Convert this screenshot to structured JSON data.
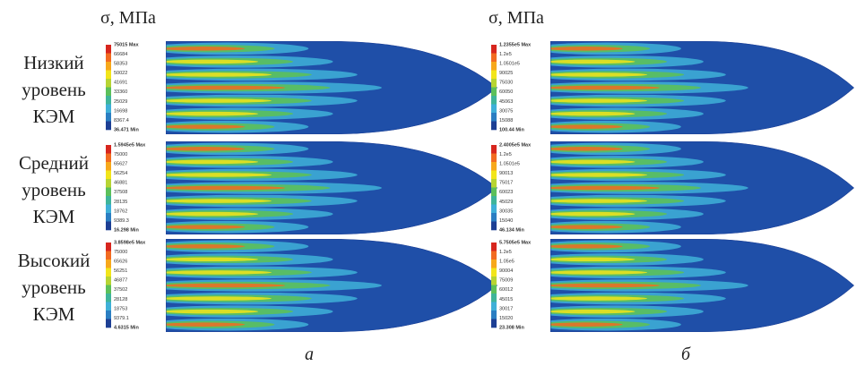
{
  "headers": [
    "σ, МПа",
    "σ, МПа"
  ],
  "row_labels": [
    [
      "Низкий",
      "уровень",
      "КЭМ"
    ],
    [
      "Средний",
      "уровень",
      "КЭМ"
    ],
    [
      "Высокий",
      "уровень",
      "КЭМ"
    ]
  ],
  "panels": [
    {
      "legend": [
        "75015 Max",
        "66684",
        "58353",
        "50022",
        "41691",
        "33360",
        "25029",
        "16698",
        "8367.4",
        "36.471 Min"
      ]
    },
    {
      "legend": [
        "1.2355e5 Max",
        "1.2e5",
        "1.0501e5",
        "90025",
        "75030",
        "60050",
        "45063",
        "30075",
        "15088",
        "100.44 Min"
      ]
    },
    {
      "legend": [
        "1.5945e5 Max",
        "75000",
        "65627",
        "56254",
        "46881",
        "37508",
        "28135",
        "18762",
        "9389.3",
        "16.298 Min"
      ]
    },
    {
      "legend": [
        "2.4005e5 Max",
        "1.2e5",
        "1.0501e5",
        "90013",
        "75017",
        "60023",
        "45029",
        "30035",
        "15040",
        "46.134 Min"
      ]
    },
    {
      "legend": [
        "3.8598e5 Max",
        "75000",
        "65626",
        "56251",
        "46877",
        "37502",
        "28128",
        "18753",
        "9379.1",
        "4.6315 Min"
      ]
    },
    {
      "legend": [
        "5.7505e5 Max",
        "1.2e5",
        "1.05e5",
        "90004",
        "75009",
        "60012",
        "45015",
        "30017",
        "15020",
        "23.308 Min"
      ]
    }
  ],
  "captions": [
    "а",
    "б"
  ]
}
